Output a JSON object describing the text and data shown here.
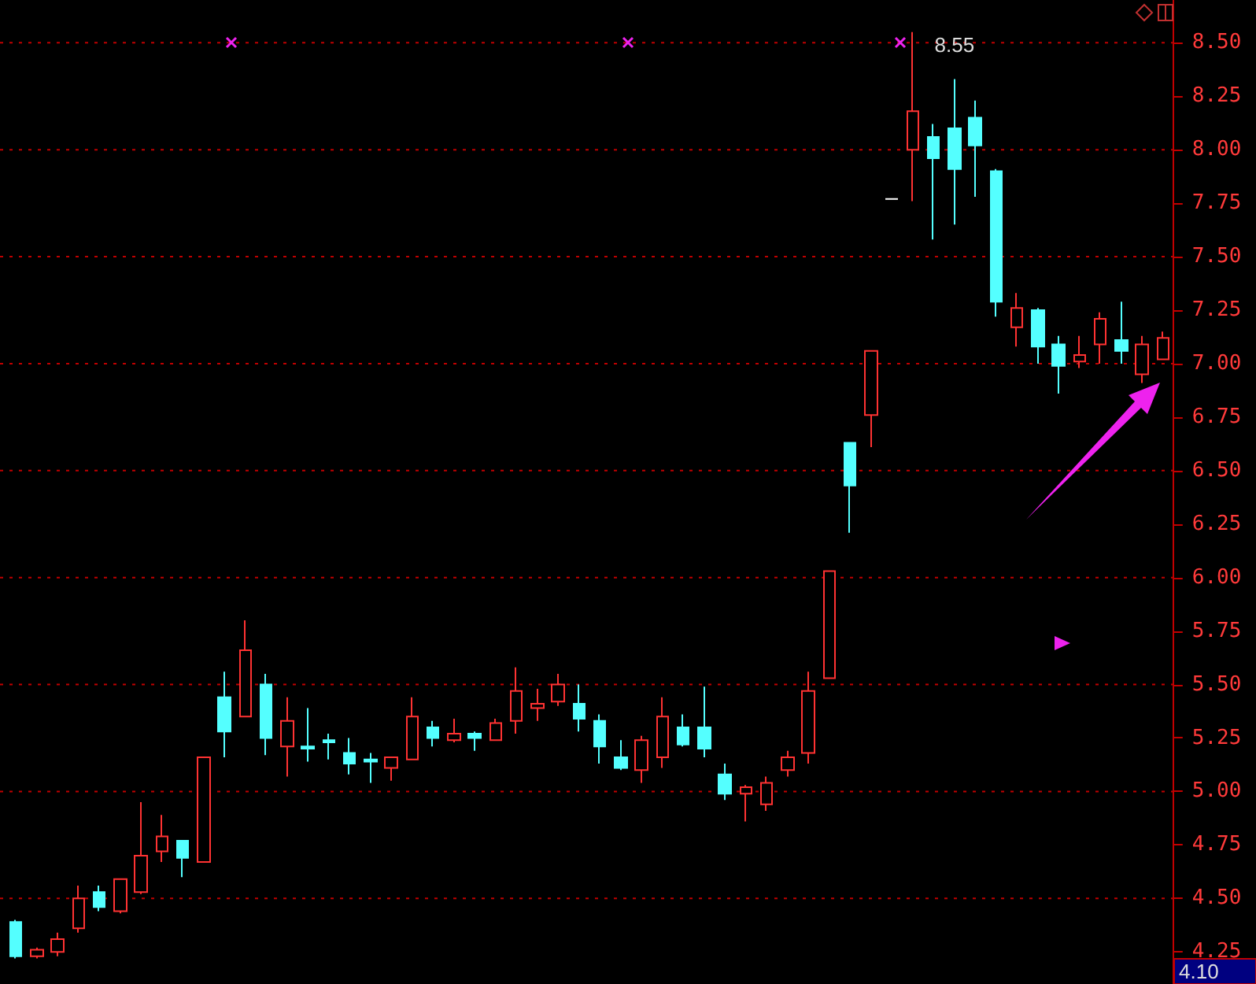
{
  "chart_data": {
    "type": "candlestick",
    "categories": [
      null,
      null,
      null,
      null,
      null,
      null,
      null,
      null,
      null,
      null,
      null,
      null,
      null,
      null,
      null,
      null,
      null,
      null,
      null,
      null,
      null,
      null,
      null,
      null,
      null,
      null,
      null,
      null,
      null,
      null,
      null,
      null,
      null,
      null,
      null,
      null,
      null,
      null,
      null,
      null,
      null,
      null,
      null,
      null,
      null,
      null,
      null,
      null,
      null,
      null,
      null,
      null,
      null,
      null,
      null,
      null
    ],
    "ohlc": [
      [
        4.39,
        4.4,
        4.22,
        4.23
      ],
      [
        4.23,
        4.27,
        4.22,
        4.26
      ],
      [
        4.25,
        4.34,
        4.23,
        4.31
      ],
      [
        4.36,
        4.56,
        4.34,
        4.5
      ],
      [
        4.53,
        4.56,
        4.44,
        4.46
      ],
      [
        4.44,
        4.59,
        4.43,
        4.59
      ],
      [
        4.53,
        4.95,
        4.52,
        4.7
      ],
      [
        4.72,
        4.89,
        4.67,
        4.79
      ],
      [
        4.77,
        4.77,
        4.6,
        4.69
      ],
      [
        4.67,
        5.16,
        4.67,
        5.16
      ],
      [
        5.44,
        5.56,
        5.16,
        5.28
      ],
      [
        5.35,
        5.8,
        5.35,
        5.66
      ],
      [
        5.5,
        5.55,
        5.17,
        5.25
      ],
      [
        5.21,
        5.44,
        5.07,
        5.33
      ],
      [
        5.21,
        5.39,
        5.14,
        5.2
      ],
      [
        5.24,
        5.27,
        5.15,
        5.23
      ],
      [
        5.18,
        5.25,
        5.08,
        5.13
      ],
      [
        5.15,
        5.18,
        5.04,
        5.14
      ],
      [
        5.11,
        5.16,
        5.05,
        5.16
      ],
      [
        5.15,
        5.44,
        5.15,
        5.35
      ],
      [
        5.3,
        5.33,
        5.21,
        5.25
      ],
      [
        5.24,
        5.34,
        5.23,
        5.27
      ],
      [
        5.27,
        5.28,
        5.19,
        5.25
      ],
      [
        5.24,
        5.34,
        5.24,
        5.32
      ],
      [
        5.33,
        5.58,
        5.27,
        5.47
      ],
      [
        5.39,
        5.48,
        5.33,
        5.41
      ],
      [
        5.42,
        5.55,
        5.4,
        5.5
      ],
      [
        5.41,
        5.5,
        5.28,
        5.34
      ],
      [
        5.33,
        5.36,
        5.13,
        5.21
      ],
      [
        5.16,
        5.24,
        5.1,
        5.11
      ],
      [
        5.1,
        5.26,
        5.04,
        5.24
      ],
      [
        5.16,
        5.44,
        5.11,
        5.35
      ],
      [
        5.3,
        5.36,
        5.21,
        5.22
      ],
      [
        5.3,
        5.49,
        5.16,
        5.2
      ],
      [
        5.08,
        5.13,
        4.96,
        4.99
      ],
      [
        4.99,
        5.03,
        4.86,
        5.02
      ],
      [
        4.94,
        5.07,
        4.91,
        5.04
      ],
      [
        5.1,
        5.19,
        5.07,
        5.16
      ],
      [
        5.18,
        5.56,
        5.13,
        5.47
      ],
      [
        5.53,
        6.03,
        5.53,
        6.03
      ],
      [
        6.63,
        6.63,
        6.21,
        6.43
      ],
      [
        6.76,
        7.06,
        6.61,
        7.06
      ],
      [
        7.77,
        7.77,
        7.77,
        7.77
      ],
      [
        8.0,
        8.55,
        7.76,
        8.18
      ],
      [
        8.06,
        8.12,
        7.58,
        7.96
      ],
      [
        8.1,
        8.33,
        7.65,
        7.91
      ],
      [
        8.15,
        8.23,
        7.78,
        8.02
      ],
      [
        7.9,
        7.91,
        7.22,
        7.29
      ],
      [
        7.17,
        7.33,
        7.08,
        7.26
      ],
      [
        7.25,
        7.26,
        7.0,
        7.08
      ],
      [
        7.09,
        7.13,
        6.86,
        6.99
      ],
      [
        7.01,
        7.13,
        6.98,
        7.04
      ],
      [
        7.09,
        7.24,
        7.0,
        7.21
      ],
      [
        7.11,
        7.29,
        7.0,
        7.06
      ],
      [
        6.95,
        7.13,
        6.91,
        7.09
      ],
      [
        7.02,
        7.15,
        7.02,
        7.12
      ]
    ],
    "colors": [
      "#54ffff",
      "#ff3232",
      "#ff3232",
      "#ff3232",
      "#54ffff",
      "#ff3232",
      "#ff3232",
      "#ff3232",
      "#54ffff",
      "#ff3232",
      "#54ffff",
      "#ff3232",
      "#54ffff",
      "#ff3232",
      "#54ffff",
      "#54ffff",
      "#54ffff",
      "#54ffff",
      "#ff3232",
      "#ff3232",
      "#54ffff",
      "#ff3232",
      "#54ffff",
      "#ff3232",
      "#ff3232",
      "#ff3232",
      "#ff3232",
      "#54ffff",
      "#54ffff",
      "#54ffff",
      "#ff3232",
      "#ff3232",
      "#54ffff",
      "#54ffff",
      "#54ffff",
      "#ff3232",
      "#ff3232",
      "#ff3232",
      "#ff3232",
      "#ff3232",
      "#54ffff",
      "#ff3232",
      "#ffffff",
      "#ff3232",
      "#54ffff",
      "#54ffff",
      "#54ffff",
      "#54ffff",
      "#ff3232",
      "#54ffff",
      "#54ffff",
      "#ff3232",
      "#ff3232",
      "#54ffff",
      "#ff3232",
      "#ff3232"
    ],
    "ylim": [
      4.1,
      8.7
    ],
    "yticks": [
      {
        "value": 4.25,
        "label": "4.25"
      },
      {
        "value": 4.5,
        "label": "4.50"
      },
      {
        "value": 4.75,
        "label": "4.75"
      },
      {
        "value": 5,
        "label": "5.00"
      },
      {
        "value": 5.25,
        "label": "5.25"
      },
      {
        "value": 5.5,
        "label": "5.50"
      },
      {
        "value": 5.75,
        "label": "5.75"
      },
      {
        "value": 6,
        "label": "6.00"
      },
      {
        "value": 6.25,
        "label": "6.25"
      },
      {
        "value": 6.5,
        "label": "6.50"
      },
      {
        "value": 6.75,
        "label": "6.75"
      },
      {
        "value": 7,
        "label": "7.00"
      },
      {
        "value": 7.25,
        "label": "7.25"
      },
      {
        "value": 7.5,
        "label": "7.50"
      },
      {
        "value": 7.75,
        "label": "7.75"
      },
      {
        "value": 8,
        "label": "8.00"
      },
      {
        "value": 8.25,
        "label": "8.25"
      },
      {
        "value": 8.5,
        "label": "8.50"
      }
    ],
    "grid": "y",
    "tick_labels": "y",
    "annotations": [
      "8.55",
      "4.10"
    ]
  }
}
